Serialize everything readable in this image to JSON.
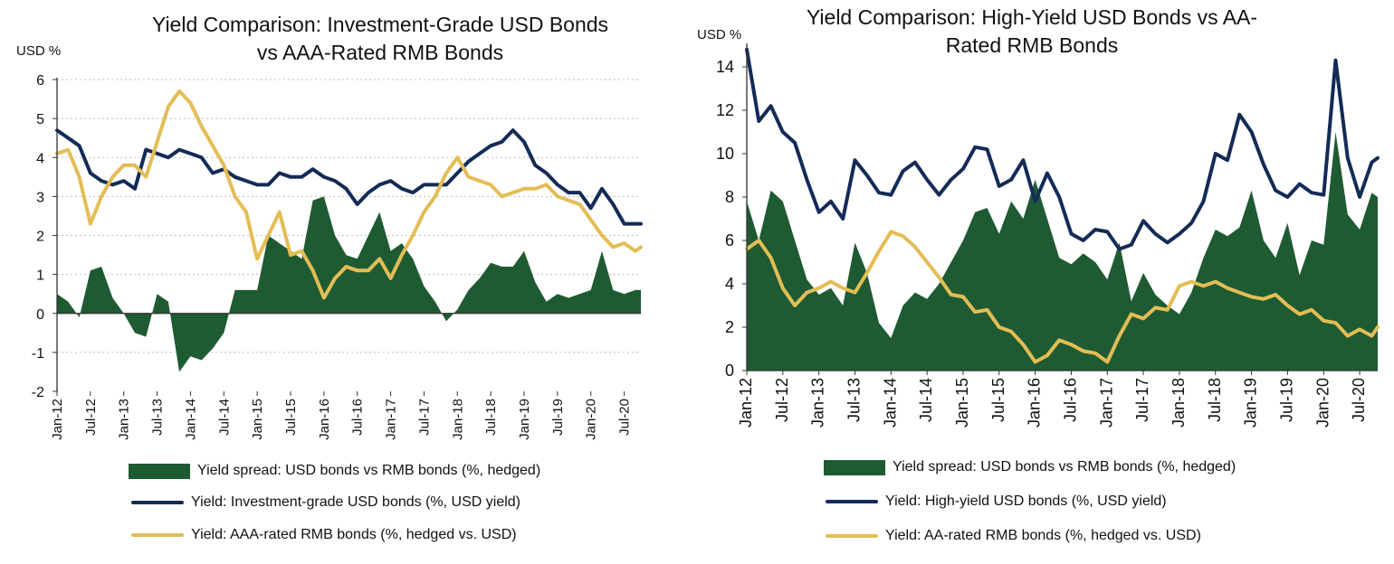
{
  "colors": {
    "spread": "#1e5b33",
    "usd": "#142b57",
    "rmb": "#e3bd55",
    "grid": "#bfbfbf",
    "axis": "#333333"
  },
  "chart_data": [
    {
      "type": "line",
      "title": "Yield Comparison: Investment-Grade USD Bonds vs AAA-Rated RMB Bonds",
      "ylabel": "USD %",
      "ylim": [
        -2,
        6
      ],
      "yticks": [
        -2,
        -1,
        0,
        1,
        2,
        3,
        4,
        5,
        6
      ],
      "x_start": "Jan-12",
      "x_end": "Oct-20",
      "xtick_labels": [
        "Jan-12",
        "Jul-12",
        "Jan-13",
        "Jul-13",
        "Jan-14",
        "Jul-14",
        "Jan-15",
        "Jul-15",
        "Jan-16",
        "Jul-16",
        "Jan-17",
        "Jul-17",
        "Jan-18",
        "Jul-18",
        "Jan-19",
        "Jul-19",
        "Jan-20",
        "Jul-20"
      ],
      "grid": "horizontal dotted",
      "legend_position": "bottom",
      "series": [
        {
          "name": "Yield spread: USD bonds vs RMB bonds (%, hedged)",
          "kind": "area",
          "x": [
            "2012-01",
            "2012-03",
            "2012-05",
            "2012-07",
            "2012-09",
            "2012-11",
            "2013-01",
            "2013-03",
            "2013-05",
            "2013-07",
            "2013-09",
            "2013-11",
            "2014-01",
            "2014-03",
            "2014-05",
            "2014-07",
            "2014-09",
            "2014-11",
            "2015-01",
            "2015-03",
            "2015-05",
            "2015-07",
            "2015-09",
            "2015-11",
            "2016-01",
            "2016-03",
            "2016-05",
            "2016-07",
            "2016-09",
            "2016-11",
            "2017-01",
            "2017-03",
            "2017-05",
            "2017-07",
            "2017-09",
            "2017-11",
            "2018-01",
            "2018-03",
            "2018-05",
            "2018-07",
            "2018-09",
            "2018-11",
            "2019-01",
            "2019-03",
            "2019-05",
            "2019-07",
            "2019-09",
            "2019-11",
            "2020-01",
            "2020-03",
            "2020-05",
            "2020-07",
            "2020-09",
            "2020-10"
          ],
          "values": [
            0.5,
            0.3,
            -0.1,
            1.1,
            1.2,
            0.4,
            0.0,
            -0.5,
            -0.6,
            0.5,
            0.3,
            -1.5,
            -1.1,
            -1.2,
            -0.9,
            -0.5,
            0.6,
            0.6,
            0.6,
            2.0,
            1.8,
            1.6,
            1.4,
            2.9,
            3.0,
            2.0,
            1.5,
            1.4,
            2.0,
            2.6,
            1.6,
            1.8,
            1.4,
            0.7,
            0.3,
            -0.2,
            0.1,
            0.6,
            0.9,
            1.3,
            1.2,
            1.2,
            1.6,
            0.8,
            0.3,
            0.5,
            0.4,
            0.5,
            0.6,
            1.6,
            0.6,
            0.5,
            0.6,
            0.6
          ]
        },
        {
          "name": "Yield: Investment-grade USD bonds (%, USD yield)",
          "kind": "line",
          "x": [
            "2012-01",
            "2012-03",
            "2012-05",
            "2012-07",
            "2012-09",
            "2012-11",
            "2013-01",
            "2013-03",
            "2013-05",
            "2013-07",
            "2013-09",
            "2013-11",
            "2014-01",
            "2014-03",
            "2014-05",
            "2014-07",
            "2014-09",
            "2014-11",
            "2015-01",
            "2015-03",
            "2015-05",
            "2015-07",
            "2015-09",
            "2015-11",
            "2016-01",
            "2016-03",
            "2016-05",
            "2016-07",
            "2016-09",
            "2016-11",
            "2017-01",
            "2017-03",
            "2017-05",
            "2017-07",
            "2017-09",
            "2017-11",
            "2018-01",
            "2018-03",
            "2018-05",
            "2018-07",
            "2018-09",
            "2018-11",
            "2019-01",
            "2019-03",
            "2019-05",
            "2019-07",
            "2019-09",
            "2019-11",
            "2020-01",
            "2020-03",
            "2020-05",
            "2020-07",
            "2020-09",
            "2020-10"
          ],
          "values": [
            4.7,
            4.5,
            4.3,
            3.6,
            3.4,
            3.3,
            3.4,
            3.2,
            4.2,
            4.1,
            4.0,
            4.2,
            4.1,
            4.0,
            3.6,
            3.7,
            3.5,
            3.4,
            3.3,
            3.3,
            3.6,
            3.5,
            3.5,
            3.7,
            3.5,
            3.4,
            3.2,
            2.8,
            3.1,
            3.3,
            3.4,
            3.2,
            3.1,
            3.3,
            3.3,
            3.3,
            3.6,
            3.9,
            4.1,
            4.3,
            4.4,
            4.7,
            4.4,
            3.8,
            3.6,
            3.3,
            3.1,
            3.1,
            2.7,
            3.2,
            2.8,
            2.3,
            2.3,
            2.3
          ]
        },
        {
          "name": "Yield: AAA-rated RMB bonds (%, hedged vs. USD)",
          "kind": "line",
          "x": [
            "2012-01",
            "2012-03",
            "2012-05",
            "2012-07",
            "2012-09",
            "2012-11",
            "2013-01",
            "2013-03",
            "2013-05",
            "2013-07",
            "2013-09",
            "2013-11",
            "2014-01",
            "2014-03",
            "2014-05",
            "2014-07",
            "2014-09",
            "2014-11",
            "2015-01",
            "2015-03",
            "2015-05",
            "2015-07",
            "2015-09",
            "2015-11",
            "2016-01",
            "2016-03",
            "2016-05",
            "2016-07",
            "2016-09",
            "2016-11",
            "2017-01",
            "2017-03",
            "2017-05",
            "2017-07",
            "2017-09",
            "2017-11",
            "2018-01",
            "2018-03",
            "2018-05",
            "2018-07",
            "2018-09",
            "2018-11",
            "2019-01",
            "2019-03",
            "2019-05",
            "2019-07",
            "2019-09",
            "2019-11",
            "2020-01",
            "2020-03",
            "2020-05",
            "2020-07",
            "2020-09",
            "2020-10"
          ],
          "values": [
            4.1,
            4.2,
            3.5,
            2.3,
            3.0,
            3.5,
            3.8,
            3.8,
            3.5,
            4.4,
            5.3,
            5.7,
            5.4,
            4.8,
            4.3,
            3.8,
            3.0,
            2.6,
            1.4,
            2.0,
            2.6,
            1.5,
            1.6,
            1.1,
            0.4,
            0.9,
            1.2,
            1.1,
            1.1,
            1.4,
            0.9,
            1.5,
            2.0,
            2.6,
            3.0,
            3.6,
            4.0,
            3.5,
            3.4,
            3.3,
            3.0,
            3.1,
            3.2,
            3.2,
            3.3,
            3.0,
            2.9,
            2.8,
            2.4,
            2.0,
            1.7,
            1.8,
            1.6,
            1.7
          ]
        }
      ]
    },
    {
      "type": "line",
      "title": "Yield Comparison: High-Yield USD Bonds vs AA-Rated RMB Bonds",
      "ylabel": "USD %",
      "ylim": [
        0,
        15
      ],
      "yticks": [
        0,
        2,
        4,
        6,
        8,
        10,
        12,
        14
      ],
      "x_start": "Jan-12",
      "x_end": "Oct-20",
      "xtick_labels": [
        "Jan-12",
        "Jul-12",
        "Jan-13",
        "Jul-13",
        "Jan-14",
        "Jul-14",
        "Jan-15",
        "Jul-15",
        "Jan-16",
        "Jul-16",
        "Jan-17",
        "Jul-17",
        "Jan-18",
        "Jul-18",
        "Jan-19",
        "Jul-19",
        "Jan-20",
        "Jul-20"
      ],
      "grid": "none",
      "legend_position": "bottom",
      "series": [
        {
          "name": "Yield spread: USD bonds vs RMB bonds (%, hedged)",
          "kind": "area",
          "x": [
            "2012-01",
            "2012-03",
            "2012-05",
            "2012-07",
            "2012-09",
            "2012-11",
            "2013-01",
            "2013-03",
            "2013-05",
            "2013-07",
            "2013-09",
            "2013-11",
            "2014-01",
            "2014-03",
            "2014-05",
            "2014-07",
            "2014-09",
            "2014-11",
            "2015-01",
            "2015-03",
            "2015-05",
            "2015-07",
            "2015-09",
            "2015-11",
            "2016-01",
            "2016-03",
            "2016-05",
            "2016-07",
            "2016-09",
            "2016-11",
            "2017-01",
            "2017-03",
            "2017-05",
            "2017-07",
            "2017-09",
            "2017-11",
            "2018-01",
            "2018-03",
            "2018-05",
            "2018-07",
            "2018-09",
            "2018-11",
            "2019-01",
            "2019-03",
            "2019-05",
            "2019-07",
            "2019-09",
            "2019-11",
            "2020-01",
            "2020-03",
            "2020-05",
            "2020-07",
            "2020-09",
            "2020-10"
          ],
          "values": [
            7.8,
            6.0,
            8.3,
            7.8,
            6.0,
            4.2,
            3.5,
            3.8,
            3.0,
            5.9,
            4.5,
            2.2,
            1.5,
            3.0,
            3.6,
            3.3,
            4.0,
            5.0,
            6.0,
            7.3,
            7.5,
            6.3,
            7.8,
            7.0,
            8.8,
            7.0,
            5.2,
            4.9,
            5.4,
            5.0,
            4.2,
            5.9,
            3.2,
            4.5,
            3.5,
            3.0,
            2.6,
            3.6,
            5.2,
            6.5,
            6.2,
            6.6,
            8.3,
            6.0,
            5.2,
            6.8,
            4.4,
            6.0,
            5.8,
            11.0,
            7.2,
            6.5,
            8.2,
            8.0
          ]
        },
        {
          "name": "Yield: High-yield USD bonds (%, USD yield)",
          "kind": "line",
          "x": [
            "2012-01",
            "2012-03",
            "2012-05",
            "2012-07",
            "2012-09",
            "2012-11",
            "2013-01",
            "2013-03",
            "2013-05",
            "2013-07",
            "2013-09",
            "2013-11",
            "2014-01",
            "2014-03",
            "2014-05",
            "2014-07",
            "2014-09",
            "2014-11",
            "2015-01",
            "2015-03",
            "2015-05",
            "2015-07",
            "2015-09",
            "2015-11",
            "2016-01",
            "2016-03",
            "2016-05",
            "2016-07",
            "2016-09",
            "2016-11",
            "2017-01",
            "2017-03",
            "2017-05",
            "2017-07",
            "2017-09",
            "2017-11",
            "2018-01",
            "2018-03",
            "2018-05",
            "2018-07",
            "2018-09",
            "2018-11",
            "2019-01",
            "2019-03",
            "2019-05",
            "2019-07",
            "2019-09",
            "2019-11",
            "2020-01",
            "2020-03",
            "2020-05",
            "2020-07",
            "2020-09",
            "2020-10"
          ],
          "values": [
            14.8,
            11.5,
            12.2,
            11.0,
            10.5,
            8.8,
            7.3,
            7.8,
            7.0,
            9.7,
            9.0,
            8.2,
            8.1,
            9.2,
            9.6,
            8.8,
            8.1,
            8.8,
            9.3,
            10.3,
            10.2,
            8.5,
            8.8,
            9.7,
            7.8,
            9.1,
            8.0,
            6.3,
            6.0,
            6.5,
            6.4,
            5.6,
            5.8,
            6.9,
            6.3,
            5.9,
            6.3,
            6.8,
            7.8,
            10.0,
            9.7,
            11.8,
            11.0,
            9.5,
            8.3,
            8.0,
            8.6,
            8.2,
            8.1,
            14.3,
            9.8,
            8.0,
            9.6,
            9.8
          ]
        },
        {
          "name": "Yield: AA-rated RMB bonds (%, hedged vs. USD)",
          "kind": "line",
          "x": [
            "2012-01",
            "2012-03",
            "2012-05",
            "2012-07",
            "2012-09",
            "2012-11",
            "2013-01",
            "2013-03",
            "2013-05",
            "2013-07",
            "2013-09",
            "2013-11",
            "2014-01",
            "2014-03",
            "2014-05",
            "2014-07",
            "2014-09",
            "2014-11",
            "2015-01",
            "2015-03",
            "2015-05",
            "2015-07",
            "2015-09",
            "2015-11",
            "2016-01",
            "2016-03",
            "2016-05",
            "2016-07",
            "2016-09",
            "2016-11",
            "2017-01",
            "2017-03",
            "2017-05",
            "2017-07",
            "2017-09",
            "2017-11",
            "2018-01",
            "2018-03",
            "2018-05",
            "2018-07",
            "2018-09",
            "2018-11",
            "2019-01",
            "2019-03",
            "2019-05",
            "2019-07",
            "2019-09",
            "2019-11",
            "2020-01",
            "2020-03",
            "2020-05",
            "2020-07",
            "2020-09",
            "2020-10"
          ],
          "values": [
            5.6,
            6.0,
            5.2,
            3.8,
            3.0,
            3.6,
            3.8,
            4.1,
            3.8,
            3.6,
            4.5,
            5.5,
            6.4,
            6.2,
            5.7,
            5.0,
            4.3,
            3.5,
            3.4,
            2.7,
            2.8,
            2.0,
            1.8,
            1.2,
            0.4,
            0.7,
            1.4,
            1.2,
            0.9,
            0.8,
            0.4,
            1.6,
            2.6,
            2.4,
            2.9,
            2.8,
            3.9,
            4.1,
            3.9,
            4.1,
            3.8,
            3.6,
            3.4,
            3.3,
            3.5,
            3.0,
            2.6,
            2.8,
            2.3,
            2.2,
            1.6,
            1.9,
            1.6,
            2.0
          ]
        }
      ]
    }
  ],
  "legend_labels": {
    "left": [
      "Yield spread: USD bonds vs RMB bonds (%, hedged)",
      "Yield: Investment-grade USD bonds (%, USD yield)",
      "Yield: AAA-rated RMB bonds (%, hedged vs. USD)"
    ],
    "right": [
      "Yield spread: USD bonds vs RMB bonds (%, hedged)",
      "Yield: High-yield USD bonds (%, USD yield)",
      "Yield: AA-rated RMB bonds (%, hedged vs. USD)"
    ]
  },
  "title_lines": {
    "left": [
      "Yield Comparison: Investment-Grade USD Bonds",
      "vs AAA-Rated RMB Bonds"
    ],
    "right": [
      "Yield Comparison: High-Yield USD Bonds vs AA-",
      "Rated RMB Bonds"
    ]
  }
}
